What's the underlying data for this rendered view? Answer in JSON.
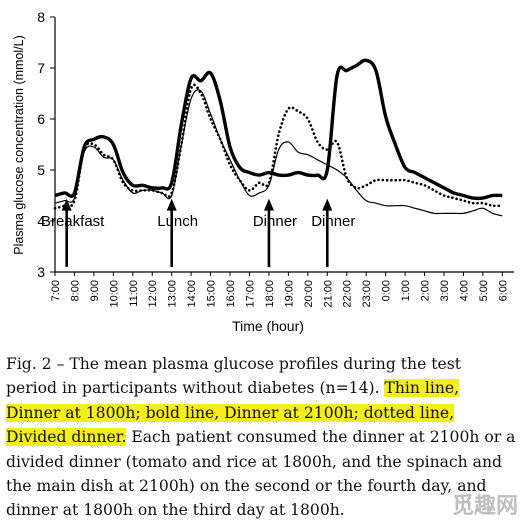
{
  "chart_data": {
    "type": "line",
    "title": "",
    "ylabel": "Plasma glucose concentration (mmol/L)",
    "xlabel": "Time (hour)",
    "ylim": [
      3,
      8
    ],
    "yticks": [
      3,
      4,
      5,
      6,
      7,
      8
    ],
    "xticks": [
      "7:00",
      "8:00",
      "9:00",
      "10:00",
      "11:00",
      "12:00",
      "13:00",
      "14:00",
      "15:00",
      "16:00",
      "17:00",
      "18:00",
      "19:00",
      "20:00",
      "21:00",
      "22:00",
      "23:00",
      "0:00",
      "1:00",
      "2:00",
      "3:00",
      "4:00",
      "5:00",
      "6:00"
    ],
    "grid": false,
    "legend": "none",
    "events": [
      {
        "label": "Breakfast",
        "time": 7.6
      },
      {
        "label": "Lunch",
        "time": 13.0
      },
      {
        "label": "Dinner",
        "time": 18.0
      },
      {
        "label": "Dinner",
        "time": 21.0
      }
    ],
    "series": [
      {
        "style": "thin",
        "x": [
          7.0,
          7.5,
          8.0,
          8.5,
          9.0,
          9.5,
          10.0,
          10.5,
          11.0,
          11.5,
          12.0,
          12.5,
          13.0,
          13.5,
          14.0,
          14.5,
          15.0,
          15.5,
          16.0,
          16.5,
          17.0,
          17.5,
          18.0,
          18.5,
          19.0,
          19.5,
          20.0,
          20.5,
          21.0,
          21.5,
          22.0,
          22.5,
          23.0,
          23.5,
          24.0,
          24.5,
          25.0,
          25.5,
          26.0,
          26.5,
          27.0,
          27.5,
          28.0,
          28.5,
          29.0,
          29.5,
          30.0
        ],
        "values": [
          4.35,
          4.4,
          4.45,
          5.35,
          5.45,
          5.25,
          5.2,
          4.8,
          4.55,
          4.6,
          4.6,
          4.55,
          4.5,
          5.5,
          6.4,
          6.55,
          6.1,
          5.6,
          5.2,
          4.8,
          4.5,
          4.55,
          4.7,
          5.4,
          5.55,
          5.35,
          5.3,
          5.2,
          5.1,
          5.0,
          4.85,
          4.6,
          4.4,
          4.35,
          4.3,
          4.3,
          4.3,
          4.25,
          4.2,
          4.15,
          4.15,
          4.15,
          4.15,
          4.2,
          4.25,
          4.15,
          4.1
        ]
      },
      {
        "style": "bold",
        "x": [
          7.0,
          7.5,
          8.0,
          8.5,
          9.0,
          9.5,
          10.0,
          10.5,
          11.0,
          11.5,
          12.0,
          12.5,
          13.0,
          13.5,
          14.0,
          14.5,
          15.0,
          15.5,
          16.0,
          16.5,
          17.0,
          17.5,
          18.0,
          18.5,
          19.0,
          19.5,
          20.0,
          20.5,
          21.0,
          21.5,
          22.0,
          22.5,
          23.0,
          23.5,
          24.0,
          24.5,
          25.0,
          25.5,
          26.0,
          26.5,
          27.0,
          27.5,
          28.0,
          28.5,
          29.0,
          29.5,
          30.0
        ],
        "values": [
          4.5,
          4.55,
          4.55,
          5.45,
          5.6,
          5.65,
          5.5,
          4.95,
          4.7,
          4.7,
          4.65,
          4.65,
          4.75,
          5.9,
          6.8,
          6.75,
          6.9,
          6.35,
          5.45,
          5.05,
          4.95,
          4.9,
          4.95,
          4.9,
          4.9,
          4.95,
          4.9,
          4.9,
          5.0,
          6.85,
          6.95,
          7.05,
          7.15,
          6.95,
          6.05,
          5.5,
          5.05,
          4.95,
          4.85,
          4.75,
          4.65,
          4.55,
          4.5,
          4.45,
          4.45,
          4.5,
          4.5
        ]
      },
      {
        "style": "dotted",
        "x": [
          7.0,
          7.5,
          8.0,
          8.5,
          9.0,
          9.5,
          10.0,
          10.5,
          11.0,
          11.5,
          12.0,
          12.5,
          13.0,
          13.5,
          14.0,
          14.5,
          15.0,
          15.5,
          16.0,
          16.5,
          17.0,
          17.5,
          18.0,
          18.5,
          19.0,
          19.5,
          20.0,
          20.5,
          21.0,
          21.5,
          22.0,
          22.5,
          23.0,
          23.5,
          24.0,
          24.5,
          25.0,
          25.5,
          26.0,
          26.5,
          27.0,
          27.5,
          28.0,
          28.5,
          29.0,
          29.5,
          30.0
        ],
        "values": [
          4.25,
          4.3,
          4.4,
          5.4,
          5.5,
          5.3,
          5.2,
          4.75,
          4.6,
          4.6,
          4.6,
          4.55,
          4.55,
          5.5,
          6.6,
          6.5,
          6.0,
          5.6,
          5.1,
          4.8,
          4.6,
          4.75,
          4.75,
          5.7,
          6.2,
          6.15,
          6.0,
          5.55,
          5.4,
          5.55,
          4.85,
          4.65,
          4.7,
          4.8,
          4.8,
          4.8,
          4.8,
          4.75,
          4.7,
          4.6,
          4.5,
          4.45,
          4.4,
          4.35,
          4.35,
          4.3,
          4.3
        ]
      }
    ]
  },
  "caption": {
    "part1": "Fig. 2 – The mean plasma glucose profiles during the test period in participants without diabetes (n=14). ",
    "highlight": "Thin line, Dinner at 1800h; bold line, Dinner at 2100h; dotted line, Divided dinner.",
    "part2": " Each patient consumed the dinner at 2100h or a divided dinner (tomato and rice at 1800h, and the spinach and the main dish at 2100h) on the second or the fourth day, and dinner at 1800h on the third day a",
    "part3": "t 1800h."
  },
  "watermark": "觅趣网"
}
